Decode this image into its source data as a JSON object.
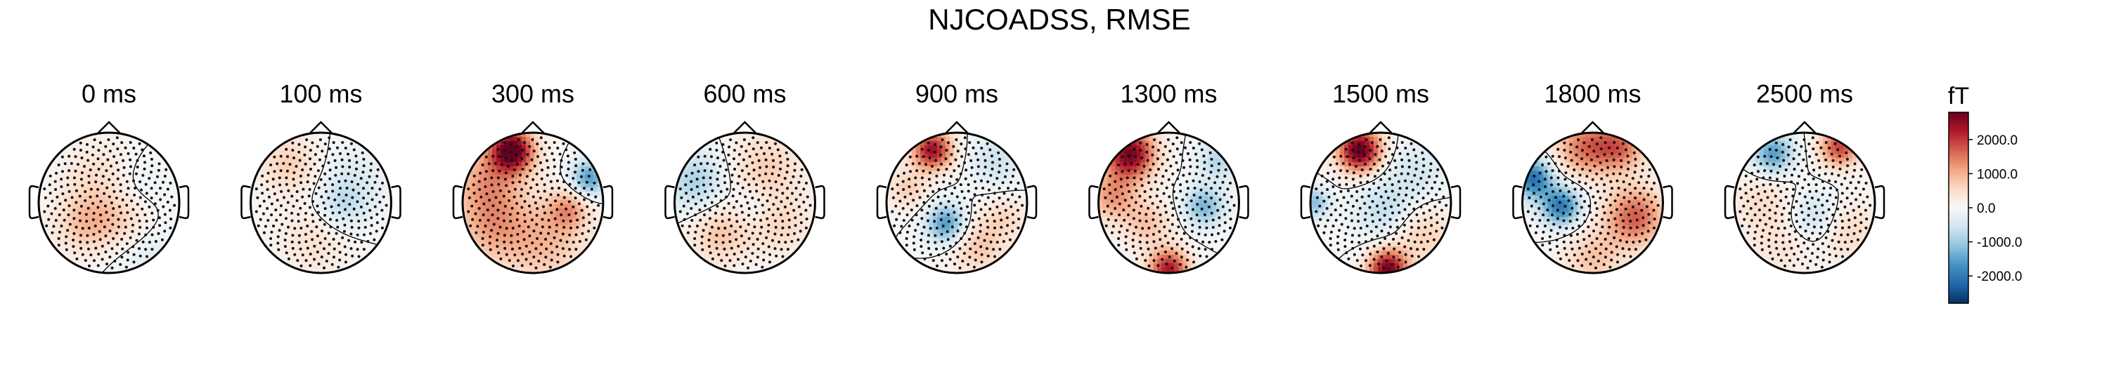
{
  "figure": {
    "title": "NJCOADSS, RMSE"
  },
  "chart_data": {
    "type": "heatmap",
    "title": "NJCOADSS, RMSE",
    "unit": "fT",
    "colormap": [
      "#053061",
      "#2166ac",
      "#4393c3",
      "#92c5de",
      "#d1e5f0",
      "#f7f7f7",
      "#fddbc7",
      "#f4a582",
      "#d6604d",
      "#b2182b",
      "#67001f"
    ],
    "color_range": [
      -2800,
      2800
    ],
    "colorbar_ticks": [
      {
        "value": 2000.0,
        "label": "2000.0"
      },
      {
        "value": 1000.0,
        "label": "1000.0"
      },
      {
        "value": 0.0,
        "label": "0.0"
      },
      {
        "value": -1000.0,
        "label": "-1000.0"
      },
      {
        "value": -2000.0,
        "label": "-2000.0"
      }
    ],
    "topomaps": [
      {
        "label": "0 ms",
        "time_ms": 0,
        "blobs": [
          {
            "pos": [
              -0.15,
              0.35
            ],
            "sigma": 0.35,
            "amp": 500
          },
          {
            "pos": [
              0.35,
              0.2
            ],
            "sigma": 0.3,
            "amp": -300
          },
          {
            "pos": [
              -0.35,
              -0.3
            ],
            "sigma": 0.3,
            "amp": 800
          },
          {
            "pos": [
              0.2,
              -0.25
            ],
            "sigma": 0.3,
            "amp": 650
          },
          {
            "pos": [
              0.5,
              -0.7
            ],
            "sigma": 0.35,
            "amp": -350
          }
        ]
      },
      {
        "label": "100 ms",
        "time_ms": 100,
        "blobs": [
          {
            "pos": [
              -0.45,
              0.55
            ],
            "sigma": 0.3,
            "amp": 700
          },
          {
            "pos": [
              0.45,
              0.3
            ],
            "sigma": 0.35,
            "amp": -400
          },
          {
            "pos": [
              0.3,
              -0.05
            ],
            "sigma": 0.25,
            "amp": -550
          },
          {
            "pos": [
              -0.1,
              -0.55
            ],
            "sigma": 0.35,
            "amp": 450
          }
        ]
      },
      {
        "label": "300 ms",
        "time_ms": 300,
        "blobs": [
          {
            "pos": [
              -0.3,
              0.75
            ],
            "sigma": 0.22,
            "amp": 2900
          },
          {
            "pos": [
              -0.65,
              0.3
            ],
            "sigma": 0.35,
            "amp": 1100
          },
          {
            "pos": [
              0.8,
              0.35
            ],
            "sigma": 0.18,
            "amp": -1600
          },
          {
            "pos": [
              0.15,
              -0.55
            ],
            "sigma": 0.45,
            "amp": 900
          },
          {
            "pos": [
              -0.6,
              -0.35
            ],
            "sigma": 0.35,
            "amp": 900
          },
          {
            "pos": [
              0.5,
              -0.1
            ],
            "sigma": 0.2,
            "amp": 1000
          }
        ]
      },
      {
        "label": "600 ms",
        "time_ms": 600,
        "blobs": [
          {
            "pos": [
              -0.7,
              0.3
            ],
            "sigma": 0.3,
            "amp": -900
          },
          {
            "pos": [
              0.3,
              0.5
            ],
            "sigma": 0.35,
            "amp": 700
          },
          {
            "pos": [
              -0.35,
              -0.45
            ],
            "sigma": 0.3,
            "amp": 800
          },
          {
            "pos": [
              0.5,
              -0.3
            ],
            "sigma": 0.3,
            "amp": 600
          },
          {
            "pos": [
              0.15,
              -0.05
            ],
            "sigma": 0.2,
            "amp": -350
          }
        ]
      },
      {
        "label": "900 ms",
        "time_ms": 900,
        "blobs": [
          {
            "pos": [
              -0.35,
              0.75
            ],
            "sigma": 0.2,
            "amp": 2400
          },
          {
            "pos": [
              0.55,
              0.6
            ],
            "sigma": 0.25,
            "amp": -600
          },
          {
            "pos": [
              -0.7,
              0.2
            ],
            "sigma": 0.2,
            "amp": 700
          },
          {
            "pos": [
              -0.15,
              -0.3
            ],
            "sigma": 0.2,
            "amp": -1700
          },
          {
            "pos": [
              0.3,
              -0.6
            ],
            "sigma": 0.3,
            "amp": 800
          },
          {
            "pos": [
              0.7,
              -0.2
            ],
            "sigma": 0.2,
            "amp": 500
          }
        ]
      },
      {
        "label": "1300 ms",
        "time_ms": 1300,
        "blobs": [
          {
            "pos": [
              -0.55,
              0.7
            ],
            "sigma": 0.25,
            "amp": 2700
          },
          {
            "pos": [
              -0.8,
              0.1
            ],
            "sigma": 0.25,
            "amp": 1200
          },
          {
            "pos": [
              0.7,
              0.6
            ],
            "sigma": 0.2,
            "amp": -800
          },
          {
            "pos": [
              0.5,
              -0.05
            ],
            "sigma": 0.2,
            "amp": -1300
          },
          {
            "pos": [
              -0.3,
              -0.3
            ],
            "sigma": 0.25,
            "amp": 800
          },
          {
            "pos": [
              0.0,
              -0.95
            ],
            "sigma": 0.2,
            "amp": 2300
          }
        ]
      },
      {
        "label": "1500 ms",
        "time_ms": 1500,
        "blobs": [
          {
            "pos": [
              -0.3,
              0.75
            ],
            "sigma": 0.22,
            "amp": 2900
          },
          {
            "pos": [
              -0.95,
              0.0
            ],
            "sigma": 0.15,
            "amp": -1200
          },
          {
            "pos": [
              0.5,
              0.45
            ],
            "sigma": 0.3,
            "amp": -500
          },
          {
            "pos": [
              0.05,
              -0.1
            ],
            "sigma": 0.3,
            "amp": -700
          },
          {
            "pos": [
              0.1,
              -0.95
            ],
            "sigma": 0.2,
            "amp": 2700
          },
          {
            "pos": [
              0.6,
              -0.45
            ],
            "sigma": 0.3,
            "amp": 700
          }
        ]
      },
      {
        "label": "1800 ms",
        "time_ms": 1800,
        "blobs": [
          {
            "pos": [
              -0.85,
              0.35
            ],
            "sigma": 0.2,
            "amp": -2100
          },
          {
            "pos": [
              -0.45,
              -0.05
            ],
            "sigma": 0.2,
            "amp": -2000
          },
          {
            "pos": [
              -0.1,
              0.8
            ],
            "sigma": 0.3,
            "amp": 1500
          },
          {
            "pos": [
              0.4,
              0.8
            ],
            "sigma": 0.25,
            "amp": 1400
          },
          {
            "pos": [
              0.6,
              -0.2
            ],
            "sigma": 0.3,
            "amp": 1700
          },
          {
            "pos": [
              0.0,
              -0.8
            ],
            "sigma": 0.3,
            "amp": 800
          }
        ]
      },
      {
        "label": "2500 ms",
        "time_ms": 2500,
        "blobs": [
          {
            "pos": [
              -0.45,
              0.7
            ],
            "sigma": 0.2,
            "amp": -1600
          },
          {
            "pos": [
              0.5,
              0.8
            ],
            "sigma": 0.2,
            "amp": 1900
          },
          {
            "pos": [
              -0.6,
              0.0
            ],
            "sigma": 0.3,
            "amp": 500
          },
          {
            "pos": [
              0.15,
              -0.2
            ],
            "sigma": 0.25,
            "amp": -700
          },
          {
            "pos": [
              0.6,
              -0.4
            ],
            "sigma": 0.3,
            "amp": 600
          },
          {
            "pos": [
              -0.35,
              -0.65
            ],
            "sigma": 0.3,
            "amp": 400
          }
        ]
      }
    ]
  }
}
